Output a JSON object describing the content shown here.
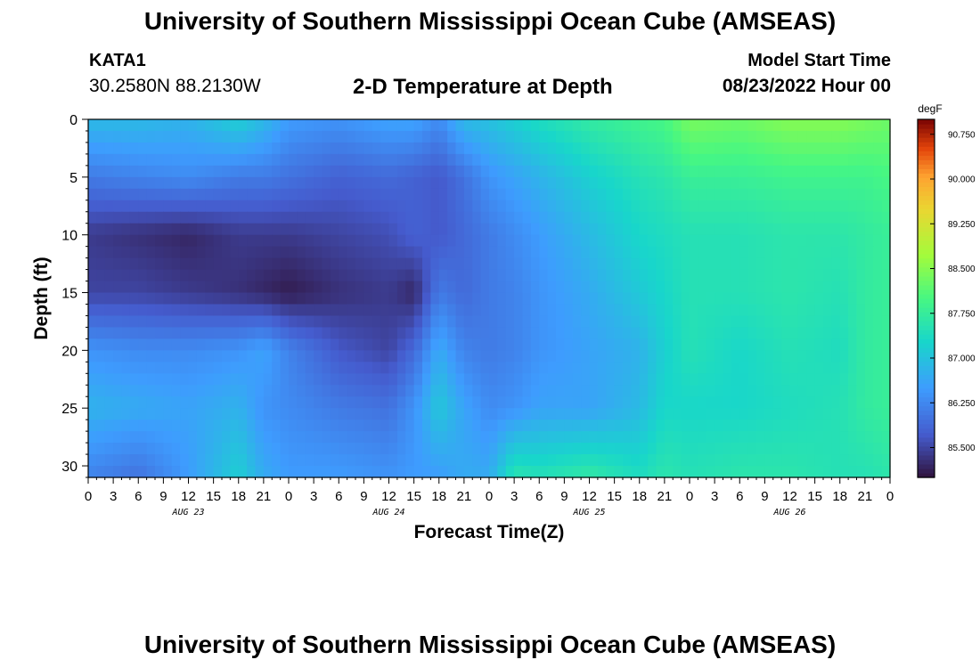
{
  "header": {
    "title": "University of Southern Mississippi Ocean Cube (AMSEAS)",
    "station": "KATA1",
    "coords": "30.2580N  88.2130W",
    "subtitle": "2-D Temperature at Depth",
    "model_label": "Model Start Time",
    "model_time": "08/23/2022 Hour 00"
  },
  "footer": {
    "title": "University of Southern Mississippi Ocean Cube (AMSEAS)"
  },
  "chart_data": {
    "type": "heatmap",
    "title": "2-D Temperature at Depth",
    "xlabel": "Forecast Time(Z)",
    "ylabel": "Depth (ft)",
    "x_hours_range": [
      0,
      96
    ],
    "ylim": [
      0,
      31
    ],
    "x_tick_labels": [
      "0",
      "3",
      "6",
      "9",
      "12",
      "15",
      "18",
      "21",
      "0",
      "3",
      "6",
      "9",
      "12",
      "15",
      "18",
      "21",
      "0",
      "3",
      "6",
      "9",
      "12",
      "15",
      "18",
      "21",
      "0",
      "3",
      "6",
      "9",
      "12",
      "15",
      "18",
      "21",
      "0"
    ],
    "y_ticks": [
      0,
      5,
      10,
      15,
      20,
      25,
      30
    ],
    "day_labels": [
      {
        "label": "AUG 23",
        "hour": 12
      },
      {
        "label": "AUG 24",
        "hour": 36
      },
      {
        "label": "AUG 25",
        "hour": 60
      },
      {
        "label": "AUG 26",
        "hour": 84
      }
    ],
    "colorbar": {
      "unit": "degF",
      "min": 85.0,
      "max": 91.0,
      "tick_values": [
        90.75,
        90.0,
        89.25,
        88.5,
        87.75,
        87.0,
        86.25,
        85.5
      ],
      "tick_labels": [
        "90.750",
        "90.000",
        "89.250",
        "88.500",
        "87.750",
        "87.000",
        "86.250",
        "85.500"
      ]
    },
    "depths_ft": [
      0,
      5,
      10,
      15,
      20,
      25,
      31
    ],
    "times_hr": [
      0,
      6,
      12,
      18,
      21,
      24,
      30,
      36,
      39,
      42,
      45,
      48,
      51,
      54,
      60,
      66,
      69,
      72,
      78,
      84,
      90,
      93,
      96
    ],
    "temperature_degF": [
      [
        86.9,
        86.9,
        86.8,
        87.2,
        86.9,
        86.5,
        86.4,
        86.6,
        86.6,
        86.3,
        86.9,
        87.0,
        87.2,
        87.4,
        87.7,
        87.9,
        88.0,
        88.4,
        88.3,
        88.5,
        88.5,
        88.4,
        88.3
      ],
      [
        86.1,
        86.2,
        86.3,
        86.1,
        86.1,
        86.0,
        85.8,
        85.9,
        85.8,
        85.7,
        86.0,
        86.4,
        86.6,
        86.8,
        87.2,
        87.5,
        87.6,
        87.8,
        87.8,
        87.9,
        87.9,
        87.9,
        88.0
      ],
      [
        85.4,
        85.3,
        85.2,
        85.4,
        85.4,
        85.4,
        85.5,
        85.6,
        85.8,
        85.7,
        85.9,
        86.1,
        86.3,
        86.5,
        86.9,
        87.3,
        87.4,
        87.5,
        87.5,
        87.6,
        87.6,
        87.7,
        87.8
      ],
      [
        85.5,
        85.5,
        85.4,
        85.3,
        85.2,
        85.1,
        85.3,
        85.4,
        85.2,
        86.1,
        85.9,
        86.1,
        86.2,
        86.4,
        86.7,
        87.1,
        87.3,
        87.5,
        87.5,
        87.6,
        87.5,
        87.7,
        87.8
      ],
      [
        86.4,
        86.3,
        86.3,
        86.4,
        86.6,
        86.2,
        85.7,
        85.5,
        85.9,
        86.7,
        86.2,
        86.1,
        86.2,
        86.4,
        86.6,
        86.8,
        87.2,
        87.5,
        87.3,
        87.5,
        87.4,
        87.7,
        87.8
      ],
      [
        86.8,
        86.7,
        86.6,
        86.8,
        86.4,
        86.3,
        86.1,
        86.0,
        86.4,
        87.1,
        86.6,
        86.3,
        86.4,
        86.6,
        86.6,
        86.9,
        87.3,
        87.3,
        87.3,
        87.4,
        87.5,
        87.7,
        87.8
      ],
      [
        86.2,
        86.0,
        86.5,
        87.2,
        86.7,
        86.5,
        86.5,
        86.4,
        86.5,
        86.5,
        86.7,
        86.7,
        87.6,
        87.5,
        87.7,
        87.4,
        87.6,
        87.5,
        87.6,
        87.6,
        87.5,
        87.5,
        87.6
      ]
    ]
  }
}
